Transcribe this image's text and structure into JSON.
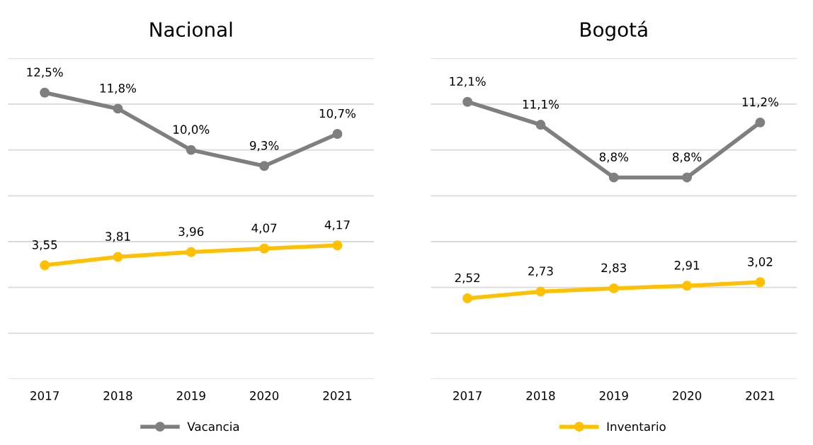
{
  "chart_data": [
    {
      "type": "line",
      "title": "Nacional",
      "categories": [
        "2017",
        "2018",
        "2019",
        "2020",
        "2021"
      ],
      "ylim": [
        0,
        14
      ],
      "yticks": [
        0,
        2,
        4,
        6,
        8,
        10,
        12,
        14
      ],
      "y2lim": [
        0,
        10
      ],
      "tick_labels": "x",
      "grid": "y",
      "marker": "circle",
      "legend": "bottom",
      "data_labels": true,
      "series": [
        {
          "name": "Vacancia",
          "color": "#7f7f7f",
          "values": [
            12.5,
            11.8,
            10.0,
            9.3,
            10.7
          ],
          "value_labels": [
            "12,5%",
            "11,8%",
            "10,0%",
            "9,3%",
            "10,7%"
          ]
        },
        {
          "color": "#ffc000",
          "axis": "y2",
          "values": [
            3.55,
            3.81,
            3.96,
            4.07,
            4.17
          ],
          "value_labels": [
            "3,55",
            "3,81",
            "3,96",
            "4,07",
            "4,17"
          ]
        }
      ]
    },
    {
      "type": "line",
      "title": "Bogotá",
      "categories": [
        "2017",
        "2018",
        "2019",
        "2020",
        "2021"
      ],
      "ylim": [
        0,
        14
      ],
      "yticks": [
        0,
        2,
        4,
        6,
        8,
        10,
        12,
        14
      ],
      "y2lim": [
        0,
        10
      ],
      "tick_labels": "x",
      "grid": "y",
      "marker": "circle",
      "legend": "bottom",
      "data_labels": true,
      "series": [
        {
          "color": "#7f7f7f",
          "values": [
            12.1,
            11.1,
            8.8,
            8.8,
            11.2
          ],
          "value_labels": [
            "12,1%",
            "11,1%",
            "8,8%",
            "8,8%",
            "11,2%"
          ]
        },
        {
          "name": "Inventario",
          "color": "#ffc000",
          "axis": "y2",
          "values": [
            2.52,
            2.73,
            2.83,
            2.91,
            3.02
          ],
          "value_labels": [
            "2,52",
            "2,73",
            "2,83",
            "2,91",
            "3,02"
          ]
        }
      ]
    }
  ]
}
